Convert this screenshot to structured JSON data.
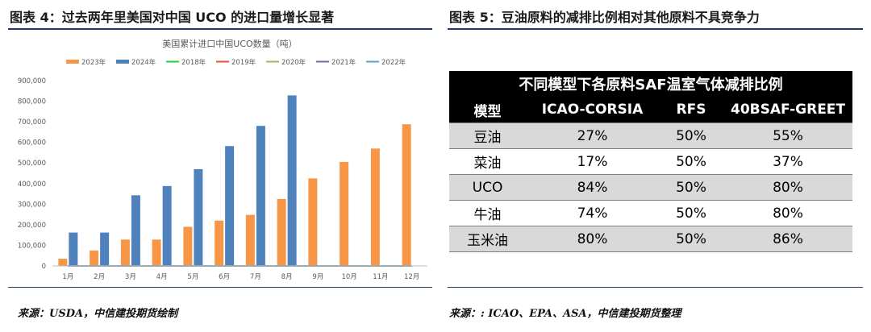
{
  "left": {
    "figure_title": "图表 4：过去两年里美国对中国 UCO 的进口量增长显著",
    "source": "来源：USDA，中信建投期货绘制"
  },
  "right": {
    "figure_title": "图表 5：豆油原料的减排比例相对其他原料不具竞争力",
    "source": "来源：: ICAO、EPA、ASA，中信建投期货整理"
  },
  "chart_data": {
    "type": "bar",
    "title": "美国累计进口中国UCO数量（吨）",
    "categories": [
      "1月",
      "2月",
      "3月",
      "4月",
      "5月",
      "6月",
      "7月",
      "8月",
      "9月",
      "10月",
      "11月",
      "12月"
    ],
    "ylim": [
      0,
      900000
    ],
    "yticks": [
      "0",
      "100,000",
      "200,000",
      "300,000",
      "400,000",
      "500,000",
      "600,000",
      "700,000",
      "800,000",
      "900,000"
    ],
    "grid": false,
    "legend_position": "top",
    "series": [
      {
        "name": "2023年",
        "type": "bar",
        "color": "#f79646",
        "values": [
          35000,
          75000,
          128000,
          128000,
          190000,
          220000,
          248000,
          325000,
          425000,
          505000,
          570000,
          688000
        ]
      },
      {
        "name": "2024年",
        "type": "bar",
        "color": "#4f81bd",
        "values": [
          162000,
          162000,
          343000,
          388000,
          470000,
          582000,
          680000,
          828000,
          null,
          null,
          null,
          null
        ]
      },
      {
        "name": "2018年",
        "type": "line",
        "color": "#2ecc40",
        "values": [
          0,
          0,
          0,
          0,
          0,
          0,
          0,
          0,
          0,
          0,
          0,
          0
        ]
      },
      {
        "name": "2019年",
        "type": "line",
        "color": "#e8503a",
        "values": [
          0,
          0,
          0,
          0,
          0,
          0,
          0,
          0,
          0,
          0,
          0,
          0
        ]
      },
      {
        "name": "2020年",
        "type": "line",
        "color": "#9bbb59",
        "values": [
          0,
          0,
          0,
          0,
          0,
          0,
          0,
          0,
          0,
          0,
          0,
          0
        ]
      },
      {
        "name": "2021年",
        "type": "line",
        "color": "#8064a2",
        "values": [
          0,
          0,
          0,
          0,
          0,
          0,
          0,
          0,
          0,
          0,
          0,
          0
        ]
      },
      {
        "name": "2022年",
        "type": "line",
        "color": "#4bacc6",
        "values": [
          0,
          0,
          0,
          0,
          0,
          0,
          0,
          0,
          0,
          0,
          0,
          0
        ]
      }
    ]
  },
  "table": {
    "caption": "不同模型下各原料SAF温室气体减排比例",
    "headers": [
      "模型",
      "ICAO-CORSIA",
      "RFS",
      "40BSAF-GREET"
    ],
    "rows": [
      [
        "豆油",
        "27%",
        "50%",
        "55%"
      ],
      [
        "菜油",
        "17%",
        "50%",
        "37%"
      ],
      [
        "UCO",
        "84%",
        "50%",
        "80%"
      ],
      [
        "牛油",
        "74%",
        "50%",
        "80%"
      ],
      [
        "玉米油",
        "80%",
        "50%",
        "86%"
      ]
    ]
  }
}
